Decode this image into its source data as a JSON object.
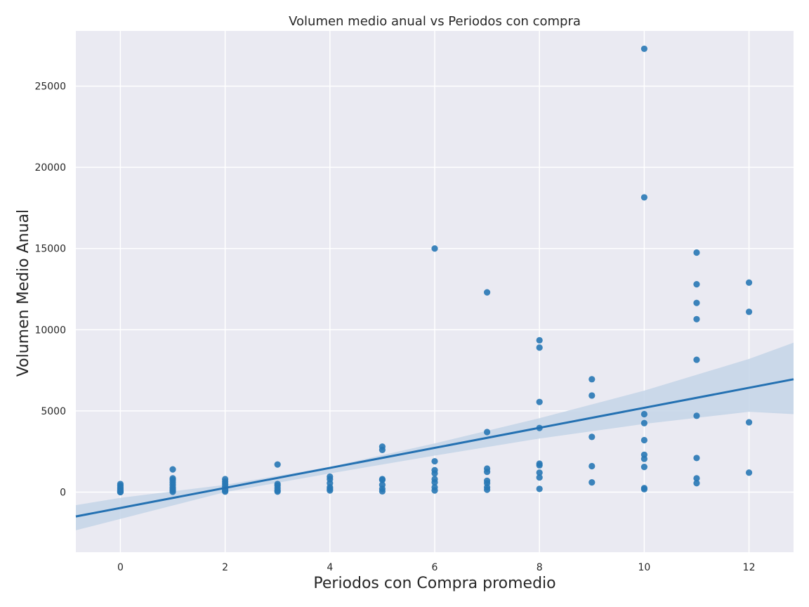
{
  "chart_data": {
    "type": "scatter",
    "title": "Volumen medio anual vs Periodos con compra",
    "xlabel": "Periodos con Compra promedio",
    "ylabel": "Volumen Medio Anual",
    "xlim": [
      -0.85,
      12.85
    ],
    "ylim": [
      -3700,
      28400
    ],
    "xticks": [
      0,
      2,
      4,
      6,
      8,
      10,
      12
    ],
    "yticks": [
      0,
      5000,
      10000,
      15000,
      20000,
      25000
    ],
    "grid": true,
    "background": "#eaeaf2",
    "grid_color": "#ffffff",
    "point_color": "#2878b5",
    "line_color": "#2471b2",
    "ci_color": "#c4d5e7",
    "points": [
      {
        "x": 0,
        "y": 500
      },
      {
        "x": 0,
        "y": 400
      },
      {
        "x": 0,
        "y": 300
      },
      {
        "x": 0,
        "y": 220
      },
      {
        "x": 0,
        "y": 150
      },
      {
        "x": 0,
        "y": 90
      },
      {
        "x": 0,
        "y": 40
      },
      {
        "x": 0,
        "y": 10
      },
      {
        "x": 0,
        "y": 0
      },
      {
        "x": 1,
        "y": 1400
      },
      {
        "x": 1,
        "y": 850
      },
      {
        "x": 1,
        "y": 750
      },
      {
        "x": 1,
        "y": 600
      },
      {
        "x": 1,
        "y": 450
      },
      {
        "x": 1,
        "y": 300
      },
      {
        "x": 1,
        "y": 200
      },
      {
        "x": 1,
        "y": 100
      },
      {
        "x": 1,
        "y": 20
      },
      {
        "x": 2,
        "y": 800
      },
      {
        "x": 2,
        "y": 650
      },
      {
        "x": 2,
        "y": 500
      },
      {
        "x": 2,
        "y": 350
      },
      {
        "x": 2,
        "y": 200
      },
      {
        "x": 2,
        "y": 100
      },
      {
        "x": 2,
        "y": 30
      },
      {
        "x": 3,
        "y": 1700
      },
      {
        "x": 3,
        "y": 500
      },
      {
        "x": 3,
        "y": 400
      },
      {
        "x": 3,
        "y": 250
      },
      {
        "x": 3,
        "y": 100
      },
      {
        "x": 3,
        "y": 30
      },
      {
        "x": 4,
        "y": 950
      },
      {
        "x": 4,
        "y": 800
      },
      {
        "x": 4,
        "y": 550
      },
      {
        "x": 4,
        "y": 300
      },
      {
        "x": 4,
        "y": 200
      },
      {
        "x": 4,
        "y": 100
      },
      {
        "x": 5,
        "y": 2800
      },
      {
        "x": 5,
        "y": 2600
      },
      {
        "x": 5,
        "y": 800
      },
      {
        "x": 5,
        "y": 750
      },
      {
        "x": 5,
        "y": 450
      },
      {
        "x": 5,
        "y": 200
      },
      {
        "x": 5,
        "y": 50
      },
      {
        "x": 6,
        "y": 15000
      },
      {
        "x": 6,
        "y": 1900
      },
      {
        "x": 6,
        "y": 1350
      },
      {
        "x": 6,
        "y": 1150
      },
      {
        "x": 6,
        "y": 800
      },
      {
        "x": 6,
        "y": 600
      },
      {
        "x": 6,
        "y": 300
      },
      {
        "x": 6,
        "y": 100
      },
      {
        "x": 7,
        "y": 12300
      },
      {
        "x": 7,
        "y": 3700
      },
      {
        "x": 7,
        "y": 1450
      },
      {
        "x": 7,
        "y": 1250
      },
      {
        "x": 7,
        "y": 700
      },
      {
        "x": 7,
        "y": 550
      },
      {
        "x": 7,
        "y": 300
      },
      {
        "x": 7,
        "y": 150
      },
      {
        "x": 8,
        "y": 9350
      },
      {
        "x": 8,
        "y": 8900
      },
      {
        "x": 8,
        "y": 5550
      },
      {
        "x": 8,
        "y": 3950
      },
      {
        "x": 8,
        "y": 1750
      },
      {
        "x": 8,
        "y": 1650
      },
      {
        "x": 8,
        "y": 1200
      },
      {
        "x": 8,
        "y": 900
      },
      {
        "x": 8,
        "y": 200
      },
      {
        "x": 9,
        "y": 6950
      },
      {
        "x": 9,
        "y": 5950
      },
      {
        "x": 9,
        "y": 3400
      },
      {
        "x": 9,
        "y": 1600
      },
      {
        "x": 9,
        "y": 600
      },
      {
        "x": 10,
        "y": 27300
      },
      {
        "x": 10,
        "y": 18150
      },
      {
        "x": 10,
        "y": 4800
      },
      {
        "x": 10,
        "y": 4250
      },
      {
        "x": 10,
        "y": 3200
      },
      {
        "x": 10,
        "y": 2300
      },
      {
        "x": 10,
        "y": 2050
      },
      {
        "x": 10,
        "y": 1550
      },
      {
        "x": 10,
        "y": 250
      },
      {
        "x": 10,
        "y": 180
      },
      {
        "x": 11,
        "y": 14750
      },
      {
        "x": 11,
        "y": 12800
      },
      {
        "x": 11,
        "y": 11650
      },
      {
        "x": 11,
        "y": 10650
      },
      {
        "x": 11,
        "y": 8150
      },
      {
        "x": 11,
        "y": 4700
      },
      {
        "x": 11,
        "y": 2100
      },
      {
        "x": 11,
        "y": 850
      },
      {
        "x": 11,
        "y": 550
      },
      {
        "x": 12,
        "y": 12900
      },
      {
        "x": 12,
        "y": 11100
      },
      {
        "x": 12,
        "y": 4300
      },
      {
        "x": 12,
        "y": 1200
      }
    ],
    "regression": {
      "line": [
        {
          "x": -0.85,
          "y": -1500
        },
        {
          "x": 12.85,
          "y": 6950
        }
      ],
      "ci_upper": [
        {
          "x": -0.85,
          "y": -800
        },
        {
          "x": 0,
          "y": -350
        },
        {
          "x": 2,
          "y": 450
        },
        {
          "x": 4,
          "y": 1550
        },
        {
          "x": 6,
          "y": 3000
        },
        {
          "x": 8,
          "y": 4550
        },
        {
          "x": 10,
          "y": 6250
        },
        {
          "x": 12,
          "y": 8200
        },
        {
          "x": 12.85,
          "y": 9200
        }
      ],
      "ci_lower": [
        {
          "x": -0.85,
          "y": -2350
        },
        {
          "x": 0,
          "y": -1650
        },
        {
          "x": 2,
          "y": 0
        },
        {
          "x": 4,
          "y": 1150
        },
        {
          "x": 6,
          "y": 2250
        },
        {
          "x": 8,
          "y": 3300
        },
        {
          "x": 10,
          "y": 4200
        },
        {
          "x": 12,
          "y": 4950
        },
        {
          "x": 12.85,
          "y": 4800
        }
      ]
    }
  }
}
